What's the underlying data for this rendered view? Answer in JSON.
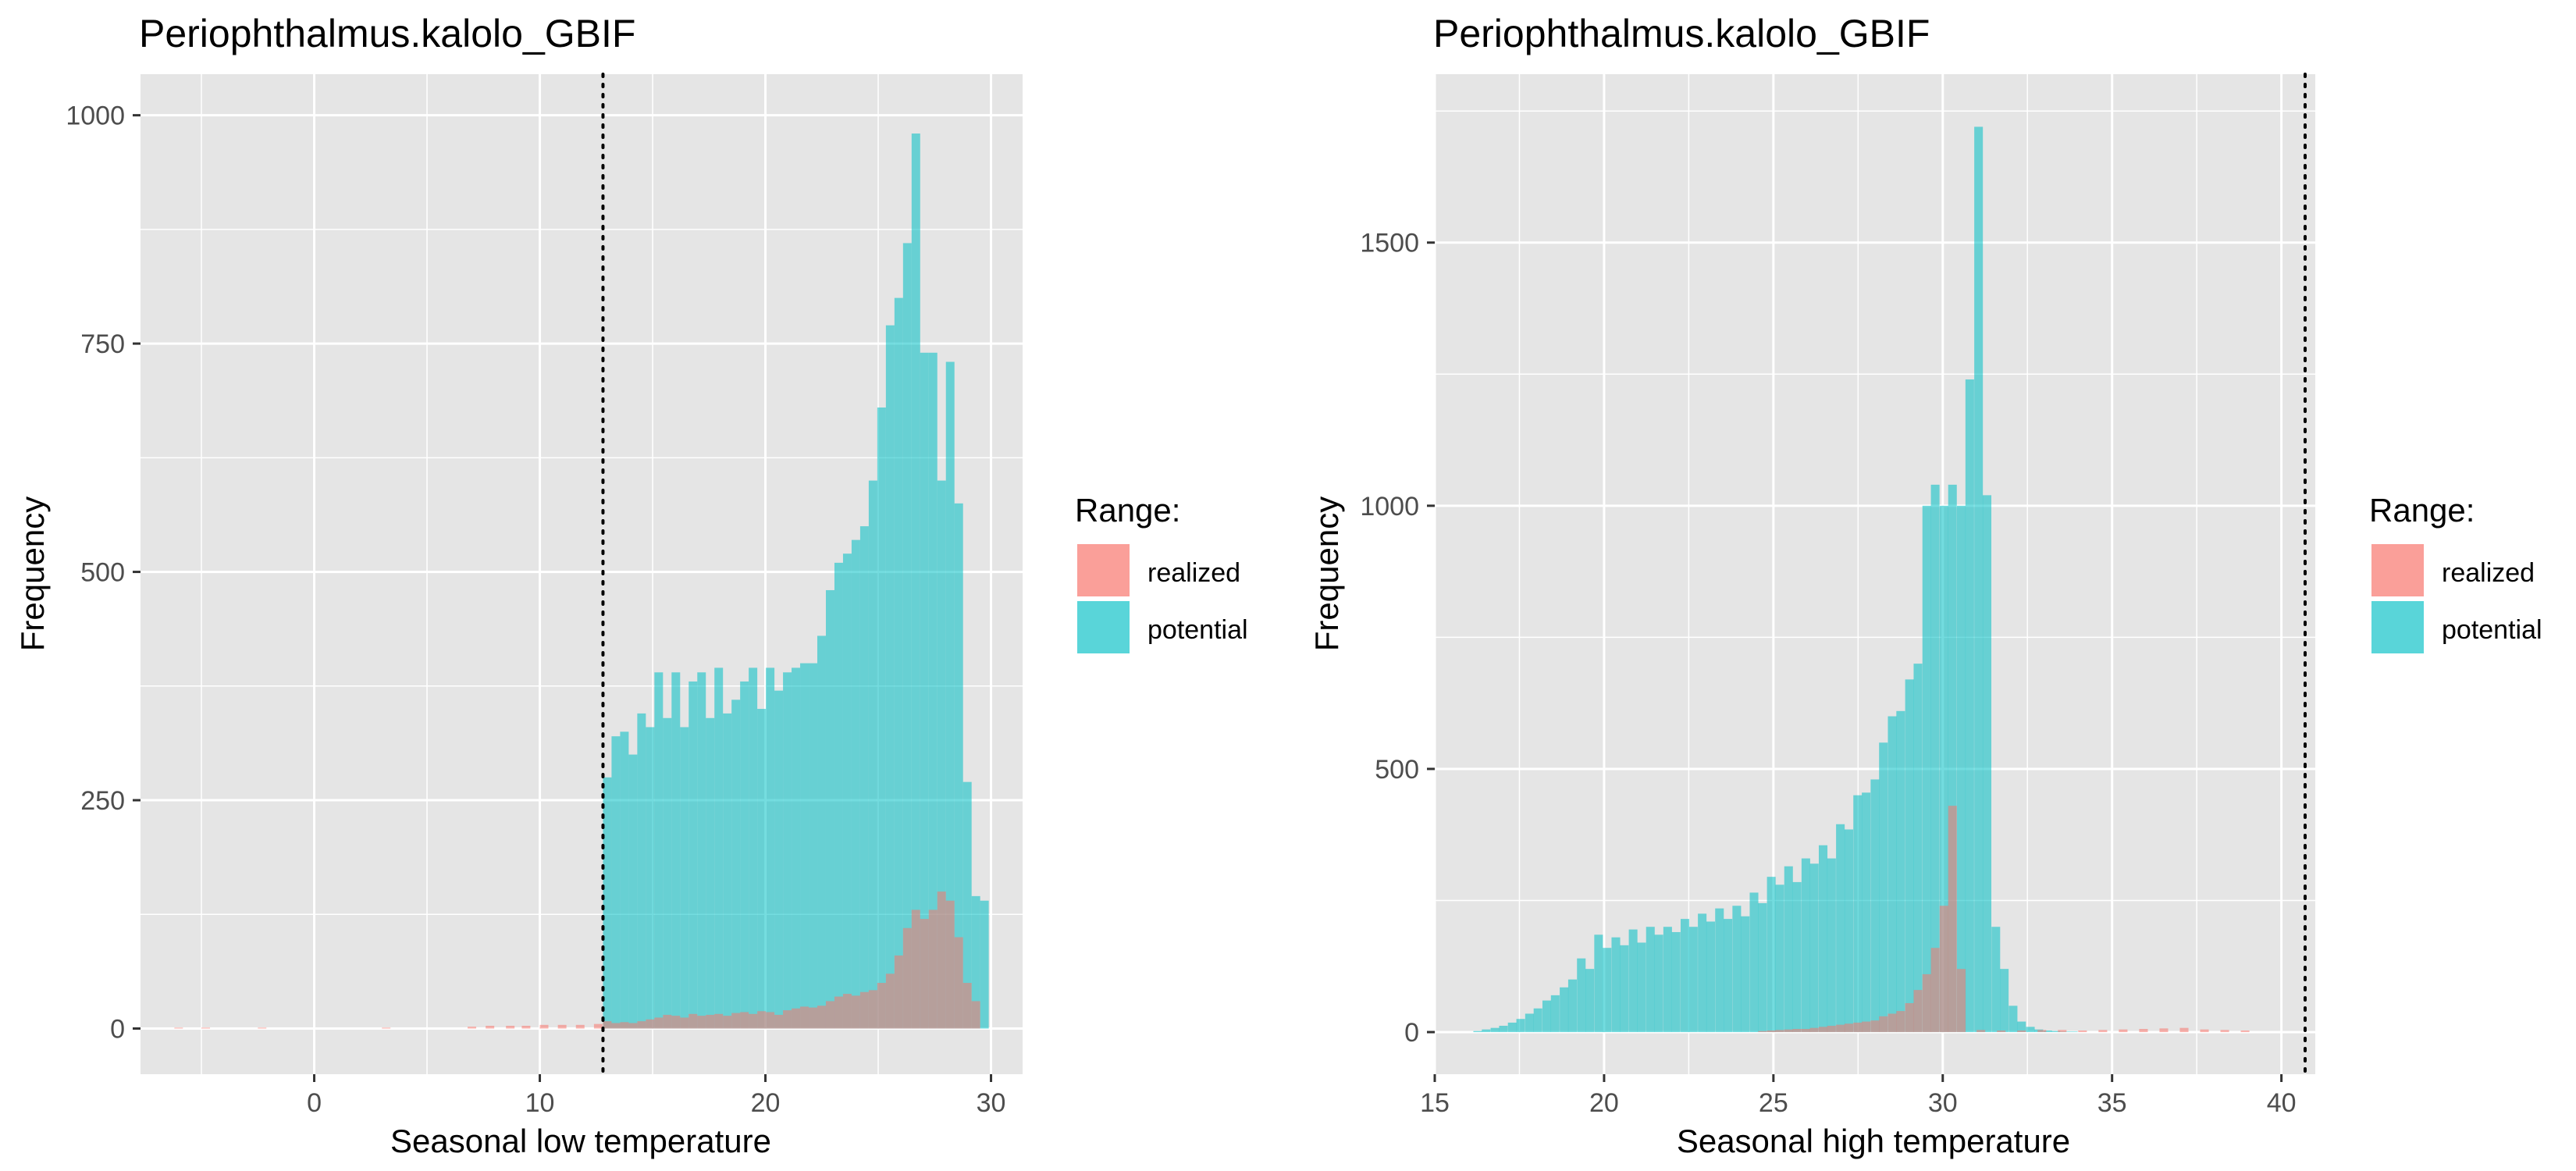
{
  "colors": {
    "realized": "#F8766D",
    "potential": "#00BFC4",
    "panel_bg": "#E5E5E5",
    "grid": "#FFFFFF",
    "bar_alpha": 0.55
  },
  "legend": {
    "title": "Range:",
    "items": [
      "realized",
      "potential"
    ]
  },
  "chart_data": [
    {
      "type": "bar",
      "subtype": "overlapping-histogram",
      "title": "Periophthalmus.kalolo_GBIF",
      "xlabel": "Seasonal low temperature",
      "ylabel": "Frequency",
      "xlim": [
        -7.7,
        31.4
      ],
      "ylim": [
        -50,
        1045
      ],
      "xticks": [
        0,
        10,
        20,
        30
      ],
      "yticks": [
        0,
        250,
        500,
        750,
        1000
      ],
      "bin_width": 0.38,
      "vline": 12.8,
      "grid": true,
      "legend_position": "right",
      "series": [
        {
          "name": "potential",
          "x": [
            12.8,
            13.18,
            13.56,
            13.94,
            14.32,
            14.7,
            15.08,
            15.46,
            15.84,
            16.22,
            16.6,
            16.98,
            17.36,
            17.74,
            18.12,
            18.5,
            18.88,
            19.26,
            19.64,
            20.02,
            20.4,
            20.78,
            21.16,
            21.54,
            21.92,
            22.3,
            22.68,
            23.06,
            23.44,
            23.82,
            24.2,
            24.58,
            24.96,
            25.34,
            25.72,
            26.1,
            26.48,
            26.86,
            27.24,
            27.62,
            28.0,
            28.38,
            28.76,
            29.14,
            29.52
          ],
          "values": [
            275,
            320,
            325,
            300,
            345,
            330,
            390,
            340,
            390,
            330,
            380,
            390,
            340,
            395,
            345,
            360,
            380,
            395,
            350,
            395,
            370,
            390,
            395,
            400,
            400,
            430,
            480,
            510,
            520,
            535,
            550,
            600,
            680,
            770,
            800,
            860,
            980,
            740,
            740,
            600,
            730,
            575,
            270,
            145,
            140
          ]
        },
        {
          "name": "realized",
          "x": [
            -6.2,
            -5.0,
            -2.5,
            3.0,
            6.8,
            7.6,
            8.5,
            9.2,
            10.0,
            10.8,
            11.6,
            12.4,
            12.8,
            13.18,
            13.56,
            13.94,
            14.32,
            14.7,
            15.08,
            15.46,
            15.84,
            16.22,
            16.6,
            16.98,
            17.36,
            17.74,
            18.12,
            18.5,
            18.88,
            19.26,
            19.64,
            20.02,
            20.4,
            20.78,
            21.16,
            21.54,
            21.92,
            22.3,
            22.68,
            23.06,
            23.44,
            23.82,
            24.2,
            24.58,
            24.96,
            25.34,
            25.72,
            26.1,
            26.48,
            26.86,
            27.24,
            27.62,
            28.0,
            28.38,
            28.76,
            29.14
          ],
          "values": [
            1,
            1,
            1,
            1,
            2,
            3,
            3,
            3,
            4,
            4,
            4,
            5,
            8,
            6,
            7,
            6,
            8,
            10,
            12,
            15,
            14,
            12,
            16,
            14,
            15,
            16,
            14,
            17,
            18,
            16,
            19,
            18,
            15,
            20,
            22,
            24,
            23,
            25,
            30,
            35,
            38,
            36,
            40,
            42,
            50,
            60,
            80,
            110,
            130,
            120,
            130,
            150,
            140,
            100,
            50,
            30
          ]
        }
      ]
    },
    {
      "type": "bar",
      "subtype": "overlapping-histogram",
      "title": "Periophthalmus.kalolo_GBIF",
      "xlabel": "Seasonal high temperature",
      "ylabel": "Frequency",
      "xlim": [
        15.0,
        41.0
      ],
      "ylim": [
        -80,
        1820
      ],
      "xticks": [
        15,
        20,
        25,
        30,
        35,
        40
      ],
      "yticks": [
        0,
        500,
        1000,
        1500
      ],
      "bin_width": 0.255,
      "vline": 40.7,
      "grid": true,
      "legend_position": "right",
      "series": [
        {
          "name": "potential",
          "x": [
            16.14,
            16.39,
            16.65,
            16.9,
            17.16,
            17.41,
            17.67,
            17.92,
            18.18,
            18.43,
            18.69,
            18.94,
            19.2,
            19.45,
            19.71,
            19.96,
            20.22,
            20.47,
            20.73,
            20.98,
            21.24,
            21.49,
            21.75,
            22.0,
            22.26,
            22.51,
            22.77,
            23.02,
            23.28,
            23.53,
            23.79,
            24.04,
            24.3,
            24.55,
            24.81,
            25.06,
            25.32,
            25.57,
            25.83,
            26.08,
            26.34,
            26.59,
            26.85,
            27.1,
            27.36,
            27.61,
            27.87,
            28.12,
            28.38,
            28.63,
            28.89,
            29.14,
            29.4,
            29.65,
            29.91,
            30.16,
            30.42,
            30.67,
            30.93,
            31.18,
            31.44,
            31.69,
            31.95,
            32.2,
            32.46,
            32.71,
            32.97,
            33.22,
            33.48,
            33.73
          ],
          "values": [
            2,
            5,
            8,
            12,
            18,
            25,
            35,
            45,
            60,
            70,
            85,
            100,
            140,
            120,
            185,
            160,
            180,
            165,
            195,
            170,
            200,
            185,
            200,
            190,
            215,
            200,
            225,
            210,
            235,
            215,
            240,
            220,
            265,
            245,
            295,
            280,
            315,
            285,
            330,
            320,
            355,
            330,
            395,
            385,
            450,
            455,
            480,
            550,
            600,
            610,
            670,
            700,
            1000,
            1040,
            1000,
            1040,
            1000,
            1240,
            1720,
            1020,
            200,
            120,
            50,
            20,
            10,
            5,
            3,
            2,
            1,
            1
          ]
        },
        {
          "name": "realized",
          "x": [
            24.55,
            24.81,
            25.06,
            25.32,
            25.57,
            25.83,
            26.08,
            26.34,
            26.59,
            26.85,
            27.1,
            27.36,
            27.61,
            27.87,
            28.12,
            28.38,
            28.63,
            28.89,
            29.14,
            29.4,
            29.65,
            29.91,
            30.16,
            30.42,
            31.0,
            31.6,
            32.2,
            32.8,
            33.4,
            34.0,
            34.6,
            35.2,
            35.8,
            36.4,
            37.0,
            37.6,
            38.2,
            38.8
          ],
          "values": [
            2,
            3,
            4,
            5,
            6,
            6,
            8,
            10,
            12,
            14,
            16,
            18,
            20,
            22,
            30,
            35,
            40,
            55,
            80,
            110,
            160,
            240,
            430,
            120,
            4,
            3,
            3,
            4,
            4,
            3,
            4,
            5,
            6,
            7,
            8,
            5,
            4,
            3
          ]
        }
      ]
    }
  ]
}
